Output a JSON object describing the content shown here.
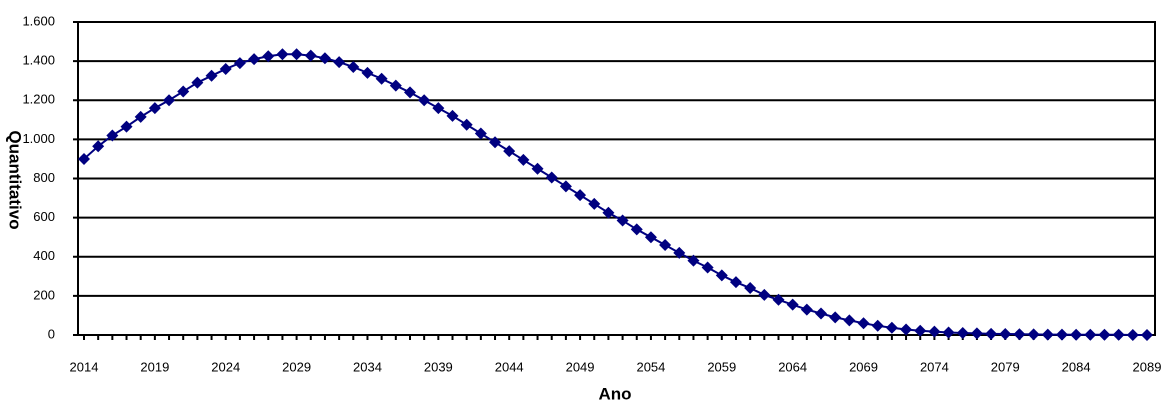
{
  "chart_data": {
    "type": "line",
    "x_label": "Ano",
    "y_label": "Quantitativo",
    "x": [
      2014,
      2015,
      2016,
      2017,
      2018,
      2019,
      2020,
      2021,
      2022,
      2023,
      2024,
      2025,
      2026,
      2027,
      2028,
      2029,
      2030,
      2031,
      2032,
      2033,
      2034,
      2035,
      2036,
      2037,
      2038,
      2039,
      2040,
      2041,
      2042,
      2043,
      2044,
      2045,
      2046,
      2047,
      2048,
      2049,
      2050,
      2051,
      2052,
      2053,
      2054,
      2055,
      2056,
      2057,
      2058,
      2059,
      2060,
      2061,
      2062,
      2063,
      2064,
      2065,
      2066,
      2067,
      2068,
      2069,
      2070,
      2071,
      2072,
      2073,
      2074,
      2075,
      2076,
      2077,
      2078,
      2079,
      2080,
      2081,
      2082,
      2083,
      2084,
      2085,
      2086,
      2087,
      2088,
      2089
    ],
    "series": [
      {
        "color": "#000080",
        "values": [
          900,
          965,
          1020,
          1065,
          1115,
          1160,
          1200,
          1245,
          1290,
          1325,
          1360,
          1390,
          1410,
          1425,
          1435,
          1435,
          1428,
          1415,
          1395,
          1370,
          1340,
          1310,
          1275,
          1240,
          1200,
          1160,
          1120,
          1075,
          1030,
          985,
          940,
          895,
          850,
          805,
          760,
          715,
          670,
          625,
          585,
          540,
          500,
          460,
          420,
          380,
          345,
          305,
          270,
          240,
          205,
          180,
          155,
          130,
          110,
          90,
          75,
          60,
          47,
          37,
          28,
          22,
          17,
          13,
          10,
          8,
          6,
          5,
          4,
          3,
          2,
          2,
          1,
          1,
          1,
          1,
          0,
          0
        ]
      }
    ],
    "xlim": [
      2014,
      2089
    ],
    "xticks": [
      2014,
      2019,
      2024,
      2029,
      2034,
      2039,
      2044,
      2049,
      2054,
      2059,
      2064,
      2069,
      2074,
      2079,
      2084,
      2089
    ],
    "ylim": [
      0,
      1600
    ],
    "yticks": [
      0,
      200,
      400,
      600,
      800,
      {
        "value": 1000,
        "label": "1.000"
      },
      {
        "value": 1200,
        "label": "1.200"
      },
      {
        "value": 1400,
        "label": "1.400"
      },
      {
        "value": 1600,
        "label": "1.600"
      }
    ],
    "grid": true
  }
}
